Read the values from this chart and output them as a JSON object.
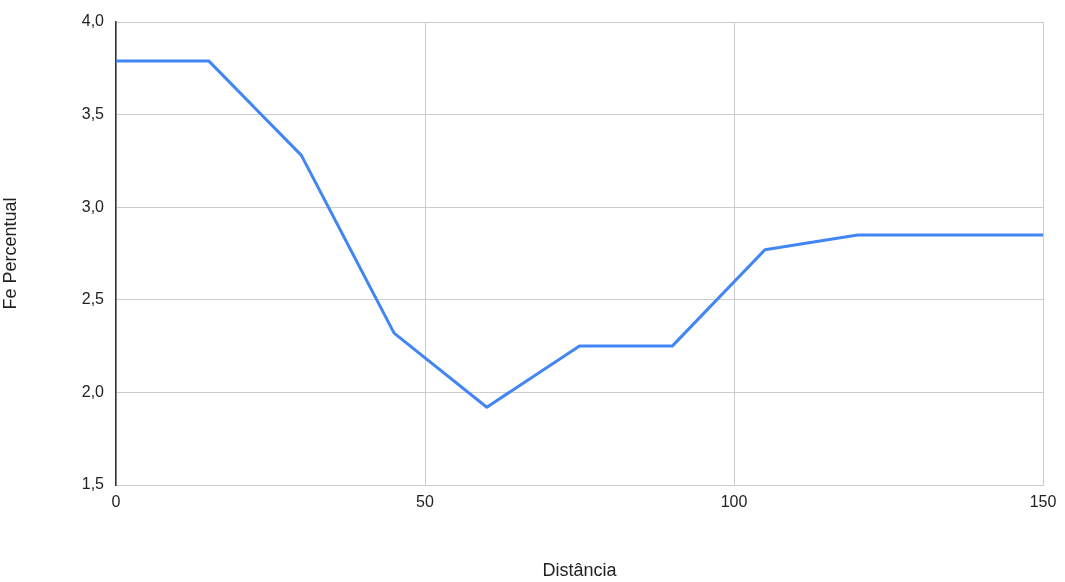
{
  "chart_data": {
    "type": "line",
    "xlabel": "Distância",
    "ylabel": "Fe Percentual",
    "x": [
      0,
      15,
      30,
      45,
      60,
      75,
      90,
      105,
      120,
      135,
      150
    ],
    "series": [
      {
        "color": "#4285f4",
        "values": [
          3.79,
          3.79,
          3.28,
          2.32,
          1.92,
          2.25,
          2.25,
          2.77,
          2.85,
          2.85,
          2.85
        ]
      }
    ],
    "xlim": [
      0,
      150
    ],
    "xticks": [
      0,
      50,
      100,
      150
    ],
    "ylim": [
      1.5,
      4.0
    ],
    "yticks": [
      {
        "value": 1.5,
        "label": "1,5"
      },
      {
        "value": 2.0,
        "label": "2,0"
      },
      {
        "value": 2.5,
        "label": "2,5"
      },
      {
        "value": 3.0,
        "label": "3,0"
      },
      {
        "value": 3.5,
        "label": "3,5"
      },
      {
        "value": 4.0,
        "label": "4,0"
      }
    ],
    "grid": true,
    "marker": "none",
    "line_style": "solid"
  }
}
